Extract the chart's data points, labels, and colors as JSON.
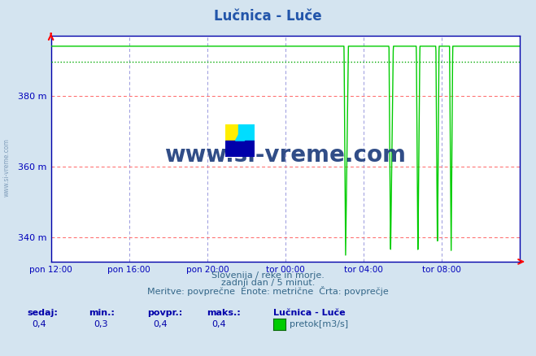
{
  "title": "Lučnica - Luče",
  "title_color": "#2255aa",
  "bg_color": "#d4e4f0",
  "plot_bg_color": "#ffffff",
  "y_label_color": "#0000bb",
  "x_label_color": "#0000bb",
  "grid_h_color": "#ff6666",
  "grid_v_color": "#9999dd",
  "line_color": "#00cc00",
  "avg_line_color": "#00aa00",
  "ylim_min": 333,
  "ylim_max": 397,
  "yticks": [
    340,
    360,
    380
  ],
  "ytick_labels": [
    "340 m",
    "360 m",
    "380 m"
  ],
  "xtick_positions": [
    0,
    4,
    8,
    12,
    16,
    20,
    24
  ],
  "xtick_labels": [
    "pon 12:00",
    "pon 16:00",
    "pon 20:00",
    "tor 00:00",
    "tor 04:00",
    "tor 08:00",
    ""
  ],
  "total_hours": 24,
  "high_value": 394.0,
  "avg_value": 389.5,
  "low_value": 334.5,
  "subtitle1": "Slovenija / reke in morje.",
  "subtitle2": "zadnji dan / 5 minut.",
  "subtitle3": "Meritve: povprečne  Enote: metrične  Črta: povprečje",
  "footer_label1": "sedaj:",
  "footer_label2": "min.:",
  "footer_label3": "povpr.:",
  "footer_label4": "maks.:",
  "footer_val1": "0,4",
  "footer_val2": "0,3",
  "footer_val3": "0,4",
  "footer_val4": "0,4",
  "footer_station": "Lučnica - Luče",
  "footer_series": "pretok[m3/s]",
  "watermark": "www.si-vreme.com",
  "watermark_color": "#1a3a7a",
  "sivreme_label": "www.si-vreme.com"
}
